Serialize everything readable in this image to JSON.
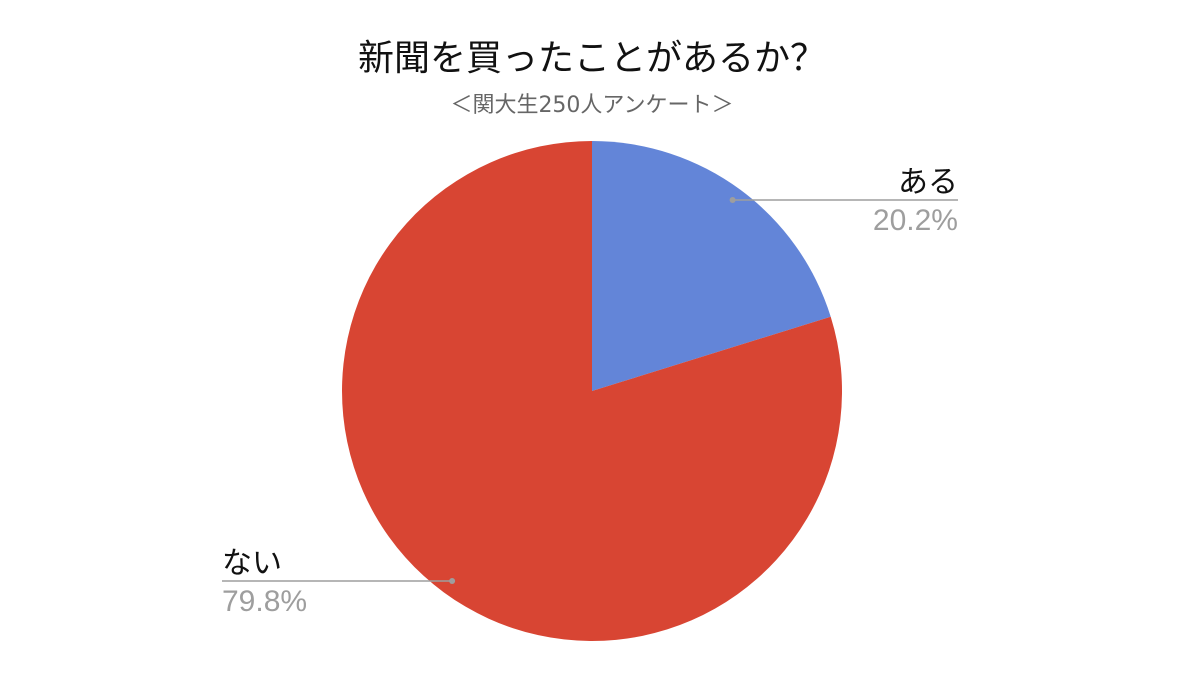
{
  "chart_data": {
    "type": "pie",
    "title": "新聞を買ったことがあるか？",
    "subtitle": "＜関大生250人アンケート＞",
    "slices": [
      {
        "label": "ある",
        "value": 20.2,
        "value_label": "20.2%",
        "color": "#6385d8"
      },
      {
        "label": "ない",
        "value": 79.8,
        "value_label": "79.8%",
        "color": "#d84533"
      }
    ],
    "legend": "none"
  }
}
